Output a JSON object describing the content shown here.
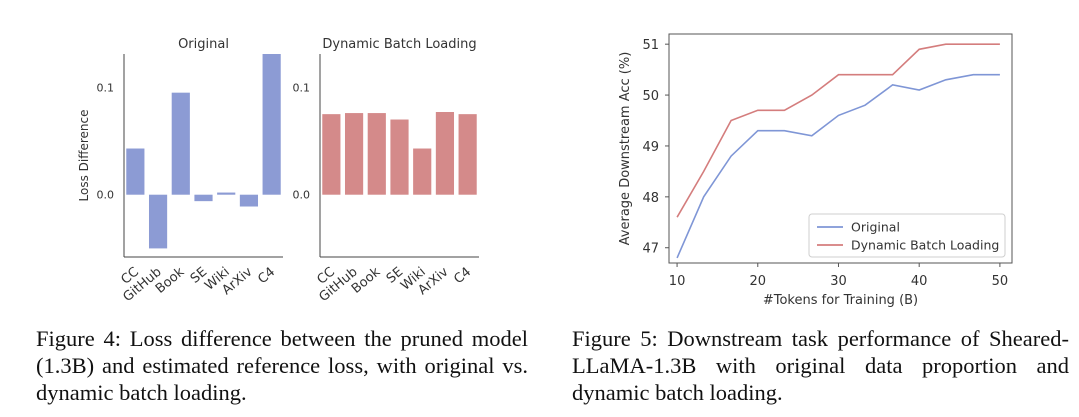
{
  "chart_data": [
    {
      "type": "bar",
      "title": "Original",
      "ylabel": "Loss Difference",
      "xlabel": "",
      "categories": [
        "CC",
        "GitHub",
        "Book",
        "SE",
        "Wiki",
        "ArXiv",
        "C4"
      ],
      "values": [
        0.043,
        -0.05,
        0.095,
        -0.006,
        0.002,
        -0.011,
        0.131
      ],
      "yticks": [
        "0.0",
        "0.1"
      ],
      "ylim": [
        -0.058,
        0.131
      ],
      "color": "#8c9bd4"
    },
    {
      "type": "bar",
      "title": "Dynamic Batch Loading",
      "ylabel": "",
      "xlabel": "",
      "categories": [
        "CC",
        "GitHub",
        "Book",
        "SE",
        "Wiki",
        "ArXiv",
        "C4"
      ],
      "values": [
        0.075,
        0.076,
        0.076,
        0.07,
        0.043,
        0.077,
        0.075
      ],
      "yticks": [
        "0.0",
        "0.1"
      ],
      "ylim": [
        -0.058,
        0.131
      ],
      "color": "#d48a8a"
    },
    {
      "type": "line",
      "title": "",
      "xlabel": "#Tokens for Training (B)",
      "ylabel": "Average Downstream Acc (%)",
      "xticks": [
        "10",
        "20",
        "30",
        "40",
        "50"
      ],
      "yticks": [
        "47",
        "48",
        "49",
        "50",
        "51"
      ],
      "xlim": [
        9,
        51.5
      ],
      "ylim": [
        46.7,
        51.2
      ],
      "series": [
        {
          "name": "Original",
          "color": "#7f96d6",
          "x": [
            10,
            13.3,
            16.7,
            20,
            23.3,
            26.7,
            30,
            33.3,
            36.7,
            40,
            43.3,
            46.7,
            50
          ],
          "y": [
            46.8,
            48.0,
            48.8,
            49.3,
            49.3,
            49.2,
            49.6,
            49.8,
            50.2,
            50.1,
            50.3,
            50.4,
            50.4
          ]
        },
        {
          "name": "Dynamic Batch Loading",
          "color": "#d47d7d",
          "x": [
            10,
            13.3,
            16.7,
            20,
            23.3,
            26.7,
            30,
            33.3,
            36.7,
            40,
            43.3,
            46.7,
            50
          ],
          "y": [
            47.6,
            48.5,
            49.5,
            49.7,
            49.7,
            50.0,
            50.4,
            50.4,
            50.4,
            50.9,
            51.0,
            51.0,
            51.0
          ]
        }
      ],
      "legend": "lower-right"
    }
  ],
  "captions": {
    "fig4": "Figure 4: Loss difference between the pruned model (1.3B) and estimated reference loss, with original vs. dynamic batch loading.",
    "fig5": "Figure 5: Downstream task performance of Sheared-LLaMA-1.3B with original data proportion and dynamic batch loading."
  }
}
